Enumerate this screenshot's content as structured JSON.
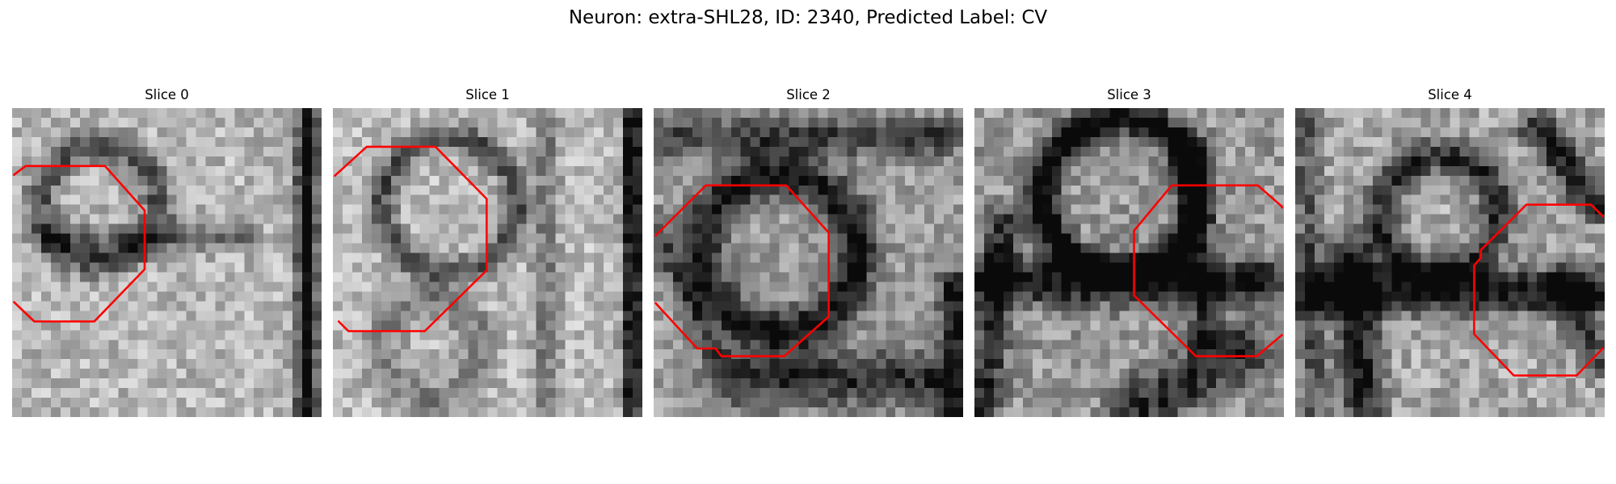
{
  "figure": {
    "title": "Neuron: extra-SHL28, ID: 2340, Predicted Label: CV"
  },
  "panels": [
    {
      "title": "Slice 0"
    },
    {
      "title": "Slice 1"
    },
    {
      "title": "Slice 2"
    },
    {
      "title": "Slice 3"
    },
    {
      "title": "Slice 4"
    }
  ],
  "colors": {
    "contour": "#ff0000",
    "colormap": "gray"
  }
}
